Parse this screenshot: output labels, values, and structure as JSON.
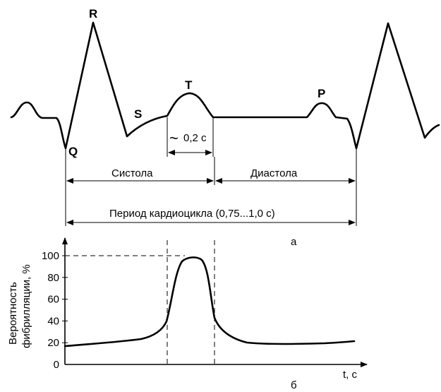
{
  "ecg": {
    "wave_labels": {
      "R": "R",
      "Q": "Q",
      "S": "S",
      "T": "T",
      "P": "P"
    },
    "interval_label": "0,2 с",
    "interval_symbol": "~",
    "systole_label": "Систола",
    "diastole_label": "Диастола",
    "period_label": "Период кардиоцикла (0,75...1,0 с)",
    "panel_letter": "а"
  },
  "chart_data": {
    "type": "line",
    "ylabel_line1": "Вероятность",
    "ylabel_line2": "фибрилляции, %",
    "xlabel": "t, с",
    "ylim": [
      0,
      100
    ],
    "yticks": [
      0,
      20,
      40,
      60,
      80,
      100
    ],
    "panel_letter": "б"
  }
}
